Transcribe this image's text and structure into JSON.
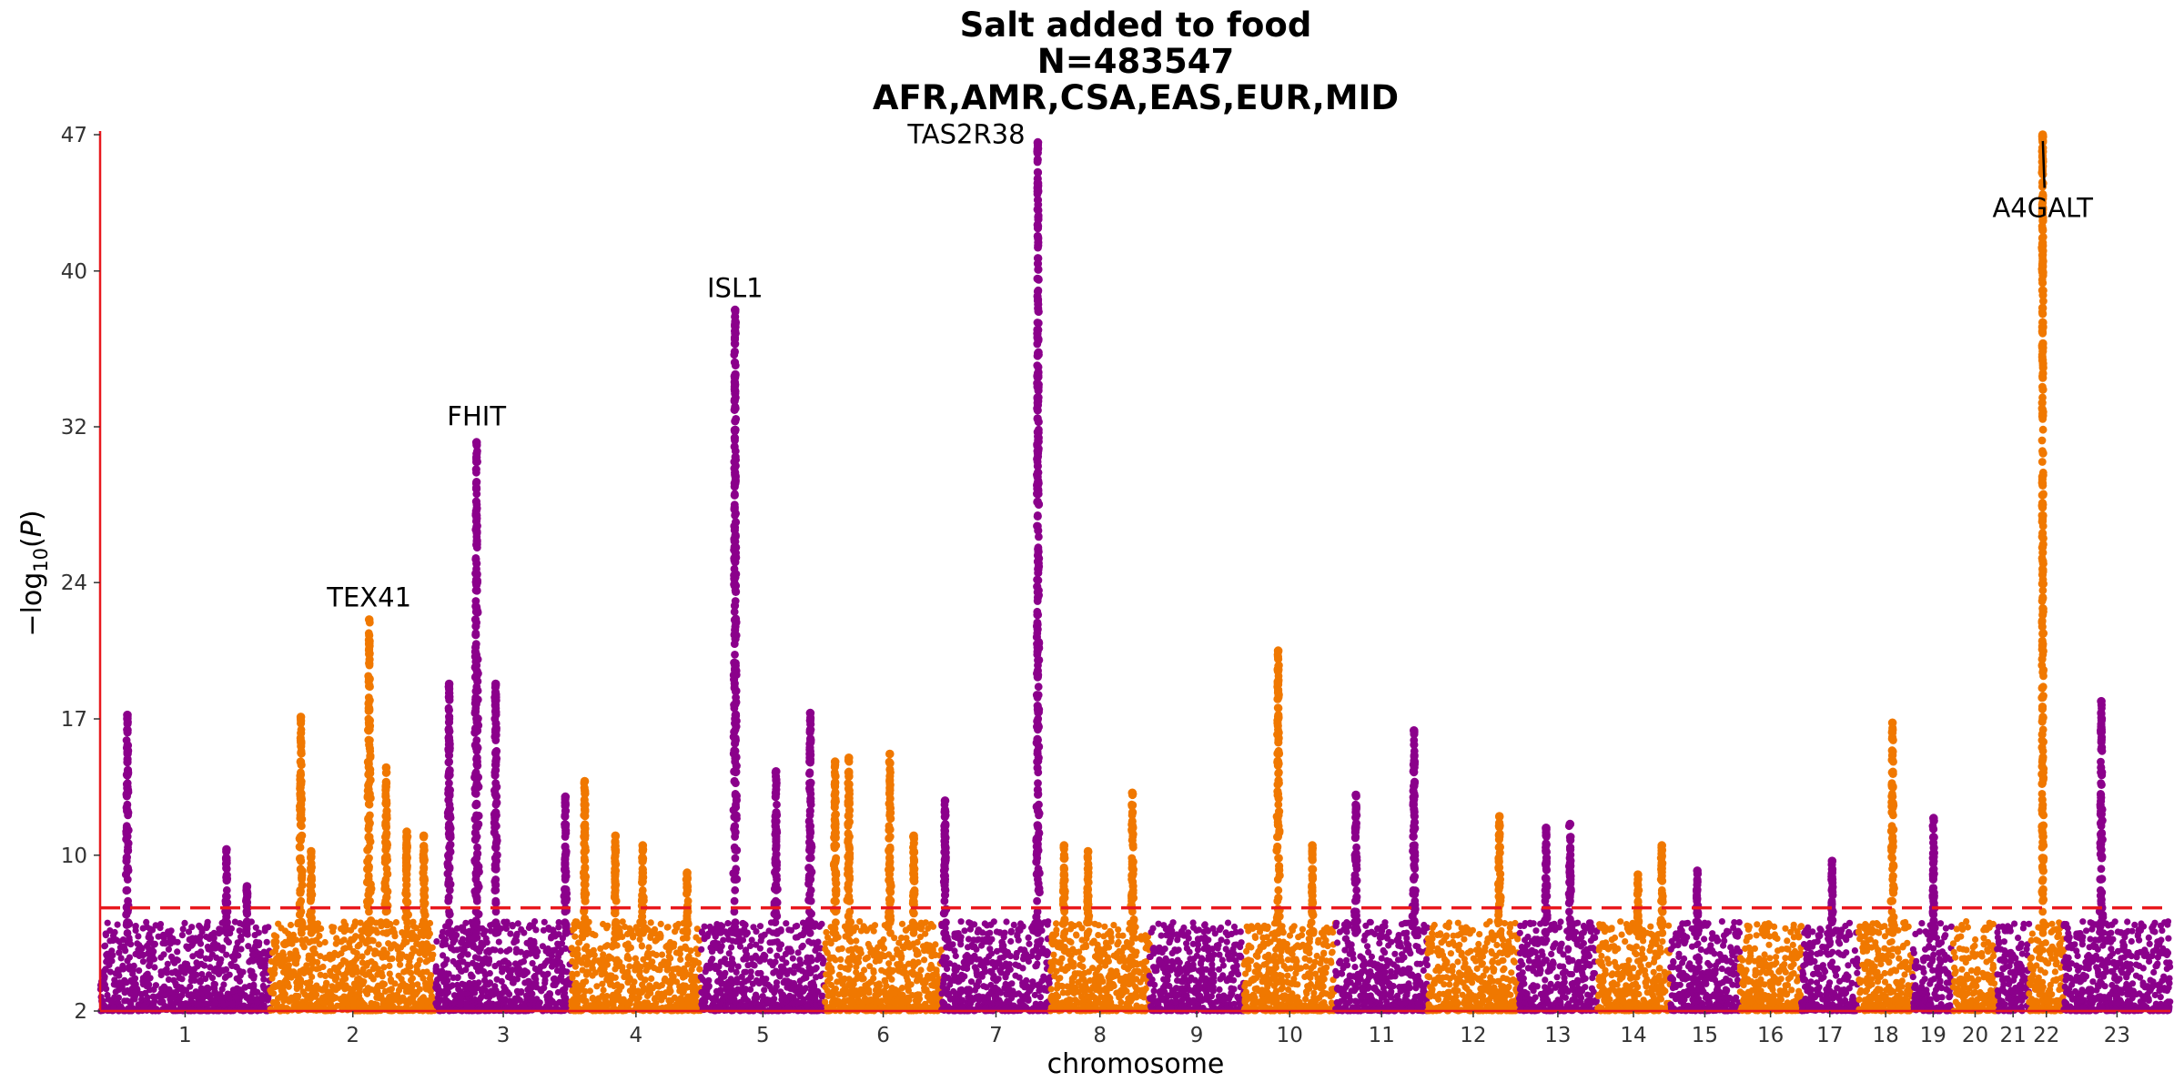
{
  "chart_data": {
    "type": "scatter",
    "subtype": "manhattan",
    "title_lines": [
      "Salt added to food",
      "N=483547",
      "AFR,AMR,CSA,EAS,EUR,MID"
    ],
    "xlabel": "chromosome",
    "ylabel": "-log10(P)",
    "ylim": [
      2,
      47
    ],
    "yticks": [
      2,
      10,
      17,
      24,
      32,
      40,
      47
    ],
    "significance_threshold": 7.3,
    "colors": {
      "odd": "#8b008b",
      "even": "#f07800",
      "threshold": "#e8191e",
      "axis": "#e8191e",
      "label_line": "#000000"
    },
    "chromosomes": [
      {
        "label": "1",
        "start": 0.0,
        "end": 248.9
      },
      {
        "label": "2",
        "start": 248.9,
        "end": 491.1
      },
      {
        "label": "3",
        "start": 491.1,
        "end": 689.4
      },
      {
        "label": "4",
        "start": 689.4,
        "end": 879.6
      },
      {
        "label": "5",
        "start": 879.6,
        "end": 1061.1
      },
      {
        "label": "6",
        "start": 1061.1,
        "end": 1231.9
      },
      {
        "label": "7",
        "start": 1231.9,
        "end": 1391.2
      },
      {
        "label": "8",
        "start": 1391.2,
        "end": 1536.3
      },
      {
        "label": "9",
        "start": 1536.3,
        "end": 1674.7
      },
      {
        "label": "10",
        "start": 1674.7,
        "end": 1808.5
      },
      {
        "label": "11",
        "start": 1808.5,
        "end": 1943.6
      },
      {
        "label": "12",
        "start": 1943.6,
        "end": 2076.9
      },
      {
        "label": "13",
        "start": 2076.9,
        "end": 2191.3
      },
      {
        "label": "14",
        "start": 2191.3,
        "end": 2298.3
      },
      {
        "label": "15",
        "start": 2298.3,
        "end": 2400.3
      },
      {
        "label": "16",
        "start": 2400.3,
        "end": 2490.6
      },
      {
        "label": "17",
        "start": 2490.6,
        "end": 2573.9
      },
      {
        "label": "18",
        "start": 2573.9,
        "end": 2654.2
      },
      {
        "label": "19",
        "start": 2654.2,
        "end": 2712.8
      },
      {
        "label": "20",
        "start": 2712.8,
        "end": 2777.2
      },
      {
        "label": "21",
        "start": 2777.2,
        "end": 2823.9
      },
      {
        "label": "22",
        "start": 2823.9,
        "end": 2874.7
      },
      {
        "label": "23",
        "start": 2874.7,
        "end": 3030.8
      }
    ],
    "peaks": [
      {
        "chr": "1",
        "pos": 40,
        "height": 17.2,
        "width": 6
      },
      {
        "chr": "1",
        "pos": 185,
        "height": 10.3,
        "width": 5
      },
      {
        "chr": "1",
        "pos": 215,
        "height": 8.4,
        "width": 4
      },
      {
        "chr": "2",
        "pos": 45,
        "height": 17.1,
        "width": 6
      },
      {
        "chr": "2",
        "pos": 60,
        "height": 10.2,
        "width": 6
      },
      {
        "chr": "2",
        "pos": 145,
        "height": 22.1,
        "width": 7
      },
      {
        "chr": "2",
        "pos": 170,
        "height": 14.5,
        "width": 6
      },
      {
        "chr": "2",
        "pos": 200,
        "height": 11.2,
        "width": 6
      },
      {
        "chr": "2",
        "pos": 225,
        "height": 11.0,
        "width": 6
      },
      {
        "chr": "3",
        "pos": 20,
        "height": 18.8,
        "width": 6
      },
      {
        "chr": "3",
        "pos": 60,
        "height": 31.2,
        "width": 8
      },
      {
        "chr": "3",
        "pos": 88,
        "height": 18.8,
        "width": 6
      },
      {
        "chr": "3",
        "pos": 190,
        "height": 13.0,
        "width": 5
      },
      {
        "chr": "4",
        "pos": 20,
        "height": 13.8,
        "width": 5
      },
      {
        "chr": "4",
        "pos": 65,
        "height": 11.0,
        "width": 5
      },
      {
        "chr": "4",
        "pos": 105,
        "height": 10.5,
        "width": 5
      },
      {
        "chr": "4",
        "pos": 170,
        "height": 9.1,
        "width": 5
      },
      {
        "chr": "5",
        "pos": 50,
        "height": 38.0,
        "width": 5
      },
      {
        "chr": "5",
        "pos": 110,
        "height": 14.3,
        "width": 6
      },
      {
        "chr": "5",
        "pos": 160,
        "height": 17.3,
        "width": 6
      },
      {
        "chr": "6",
        "pos": 15,
        "height": 14.8,
        "width": 6
      },
      {
        "chr": "6",
        "pos": 35,
        "height": 15.0,
        "width": 6
      },
      {
        "chr": "6",
        "pos": 95,
        "height": 15.2,
        "width": 6
      },
      {
        "chr": "6",
        "pos": 130,
        "height": 11.0,
        "width": 5
      },
      {
        "chr": "7",
        "pos": 5,
        "height": 12.8,
        "width": 5
      },
      {
        "chr": "7",
        "pos": 141,
        "height": 46.6,
        "width": 4
      },
      {
        "chr": "8",
        "pos": 20,
        "height": 10.5,
        "width": 5
      },
      {
        "chr": "8",
        "pos": 55,
        "height": 10.2,
        "width": 5
      },
      {
        "chr": "8",
        "pos": 120,
        "height": 13.2,
        "width": 6
      },
      {
        "chr": "10",
        "pos": 50,
        "height": 20.5,
        "width": 6
      },
      {
        "chr": "10",
        "pos": 100,
        "height": 10.5,
        "width": 5
      },
      {
        "chr": "11",
        "pos": 30,
        "height": 13.1,
        "width": 6
      },
      {
        "chr": "11",
        "pos": 115,
        "height": 16.4,
        "width": 5
      },
      {
        "chr": "12",
        "pos": 105,
        "height": 12.0,
        "width": 6
      },
      {
        "chr": "13",
        "pos": 40,
        "height": 11.4,
        "width": 5
      },
      {
        "chr": "13",
        "pos": 75,
        "height": 11.6,
        "width": 5
      },
      {
        "chr": "14",
        "pos": 60,
        "height": 9.0,
        "width": 5
      },
      {
        "chr": "14",
        "pos": 95,
        "height": 10.5,
        "width": 5
      },
      {
        "chr": "15",
        "pos": 40,
        "height": 9.2,
        "width": 5
      },
      {
        "chr": "17",
        "pos": 45,
        "height": 9.7,
        "width": 5
      },
      {
        "chr": "18",
        "pos": 50,
        "height": 16.8,
        "width": 6
      },
      {
        "chr": "19",
        "pos": 30,
        "height": 11.9,
        "width": 4
      },
      {
        "chr": "22",
        "pos": 20,
        "height": 47.0,
        "width": 2
      },
      {
        "chr": "23",
        "pos": 55,
        "height": 17.9,
        "width": 5
      }
    ],
    "annotations": [
      {
        "text": "TEX41",
        "chr": "2",
        "pos": 145,
        "y": 22.2,
        "anchor": "middle",
        "connector": false
      },
      {
        "text": "FHIT",
        "chr": "3",
        "pos": 60,
        "y": 31.5,
        "anchor": "middle",
        "connector": false
      },
      {
        "text": "ISL1",
        "chr": "5",
        "pos": 50,
        "y": 38.1,
        "anchor": "middle",
        "connector": false
      },
      {
        "text": "TAS2R38",
        "chr": "7",
        "pos": 141,
        "y": 46.0,
        "anchor": "end",
        "connector": false
      },
      {
        "text": "A4GALT",
        "chr": "22",
        "pos": 20,
        "y": 43.8,
        "anchor": "middle",
        "connector": true,
        "point_y": 46.9
      }
    ]
  }
}
